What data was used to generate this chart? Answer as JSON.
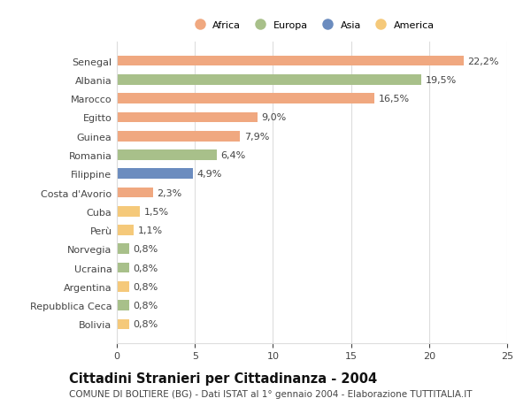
{
  "categories": [
    "Bolivia",
    "Repubblica Ceca",
    "Argentina",
    "Ucraina",
    "Norvegia",
    "Perù",
    "Cuba",
    "Costa d'Avorio",
    "Filippine",
    "Romania",
    "Guinea",
    "Egitto",
    "Marocco",
    "Albania",
    "Senegal"
  ],
  "values": [
    0.8,
    0.8,
    0.8,
    0.8,
    0.8,
    1.1,
    1.5,
    2.3,
    4.9,
    6.4,
    7.9,
    9.0,
    16.5,
    19.5,
    22.2
  ],
  "labels": [
    "0,8%",
    "0,8%",
    "0,8%",
    "0,8%",
    "0,8%",
    "1,1%",
    "1,5%",
    "2,3%",
    "4,9%",
    "6,4%",
    "7,9%",
    "9,0%",
    "16,5%",
    "19,5%",
    "22,2%"
  ],
  "colors": [
    "#F5C97A",
    "#A8C08A",
    "#F5C97A",
    "#A8C08A",
    "#A8C08A",
    "#F5C97A",
    "#F5C97A",
    "#F0A880",
    "#6B8CBF",
    "#A8C08A",
    "#F0A880",
    "#F0A880",
    "#F0A880",
    "#A8C08A",
    "#F0A880"
  ],
  "continent_colors": {
    "Africa": "#F0A880",
    "Europa": "#A8C08A",
    "Asia": "#6B8CBF",
    "America": "#F5C97A"
  },
  "xlim": [
    0,
    25
  ],
  "xticks": [
    0,
    5,
    10,
    15,
    20,
    25
  ],
  "title": "Cittadini Stranieri per Cittadinanza - 2004",
  "subtitle": "COMUNE DI BOLTIERE (BG) - Dati ISTAT al 1° gennaio 2004 - Elaborazione TUTTITALIA.IT",
  "bg_color": "#FFFFFF",
  "grid_color": "#DDDDDD",
  "bar_height": 0.55,
  "label_fontsize": 8.0,
  "tick_fontsize": 8.0,
  "title_fontsize": 10.5,
  "subtitle_fontsize": 7.5
}
